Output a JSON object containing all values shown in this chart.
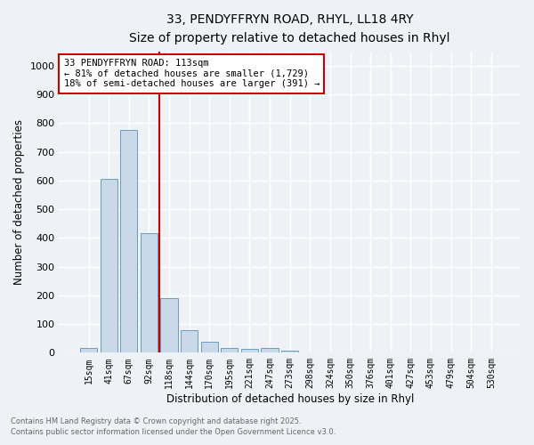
{
  "title_line1": "33, PENDYFFRYN ROAD, RHYL, LL18 4RY",
  "title_line2": "Size of property relative to detached houses in Rhyl",
  "xlabel": "Distribution of detached houses by size in Rhyl",
  "ylabel": "Number of detached properties",
  "bar_categories": [
    "15sqm",
    "41sqm",
    "67sqm",
    "92sqm",
    "118sqm",
    "144sqm",
    "170sqm",
    "195sqm",
    "221sqm",
    "247sqm",
    "273sqm",
    "298sqm",
    "324sqm",
    "350sqm",
    "376sqm",
    "401sqm",
    "427sqm",
    "453sqm",
    "479sqm",
    "504sqm",
    "530sqm"
  ],
  "bar_values": [
    15,
    605,
    775,
    415,
    190,
    78,
    38,
    18,
    12,
    15,
    8,
    0,
    0,
    0,
    0,
    0,
    0,
    0,
    0,
    0,
    0
  ],
  "bar_color": "#c9d9ea",
  "bar_edge_color": "#6a9cbf",
  "vline_color": "#cc0000",
  "annotation_text": "33 PENDYFFRYN ROAD: 113sqm\n← 81% of detached houses are smaller (1,729)\n18% of semi-detached houses are larger (391) →",
  "annotation_box_color": "#ffffff",
  "annotation_box_edge_color": "#cc0000",
  "ylim": [
    0,
    1050
  ],
  "yticks": [
    0,
    100,
    200,
    300,
    400,
    500,
    600,
    700,
    800,
    900,
    1000
  ],
  "background_color": "#eef2f7",
  "grid_color": "#ffffff",
  "footer_line1": "Contains HM Land Registry data © Crown copyright and database right 2025.",
  "footer_line2": "Contains public sector information licensed under the Open Government Licence v3.0."
}
